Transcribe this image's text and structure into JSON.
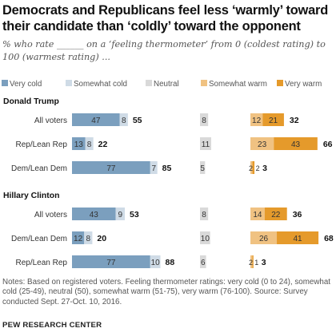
{
  "title": "Democrats and Republicans feel less ‘warmly’ toward their candidate than ‘coldly’ toward the opponent",
  "subtitle": "% who rate ______ on a ‘feeling thermometer’ from 0 (coldest rating) to 100 (warmest rating) ...",
  "notes": "Notes: Based on registered voters. Feeling thermometer ratings: very cold (0 to 24), somewhat cold (25-49), neutral (50), somewhat warm (51-75), very warm (76-100). Source: Survey conducted Sept. 27-Oct. 10, 2016.",
  "source": "PEW RESEARCH CENTER",
  "chart_data": {
    "type": "bar",
    "orientation": "horizontal",
    "stacked": true,
    "legend_position": "top",
    "colors": {
      "very_cold": "#7b9fbe",
      "somewhat_cold": "#cfdbe6",
      "neutral": "#d9d9d9",
      "somewhat_warm": "#f0c282",
      "very_warm": "#e59a2b"
    },
    "legend": [
      "Very cold",
      "Somewhat cold",
      "Neutral",
      "Somewhat warm",
      "Very warm"
    ],
    "groups": [
      {
        "name": "Donald Trump",
        "rows": [
          {
            "label": "All voters",
            "very_cold": 47,
            "somewhat_cold": 8,
            "cold_total": 55,
            "neutral": 8,
            "somewhat_warm": 12,
            "very_warm": 21,
            "warm_total": 32
          },
          {
            "label": "Rep/Lean Rep",
            "very_cold": 13,
            "somewhat_cold": 8,
            "cold_total": 22,
            "neutral": 11,
            "somewhat_warm": 23,
            "very_warm": 43,
            "warm_total": 66
          },
          {
            "label": "Dem/Lean Dem",
            "very_cold": 77,
            "somewhat_cold": 7,
            "cold_total": 85,
            "neutral": 5,
            "somewhat_warm": 2,
            "very_warm": 2,
            "warm_total": 3
          }
        ]
      },
      {
        "name": "Hillary Clinton",
        "rows": [
          {
            "label": "All voters",
            "very_cold": 43,
            "somewhat_cold": 9,
            "cold_total": 53,
            "neutral": 8,
            "somewhat_warm": 14,
            "very_warm": 22,
            "warm_total": 36
          },
          {
            "label": "Dem/Lean Dem",
            "very_cold": 12,
            "somewhat_cold": 8,
            "cold_total": 20,
            "neutral": 10,
            "somewhat_warm": 26,
            "very_warm": 41,
            "warm_total": 68
          },
          {
            "label": "Rep/Lean Rep",
            "very_cold": 77,
            "somewhat_cold": 10,
            "cold_total": 88,
            "neutral": 6,
            "somewhat_warm": 2,
            "very_warm": 1,
            "warm_total": 3
          }
        ]
      }
    ]
  }
}
